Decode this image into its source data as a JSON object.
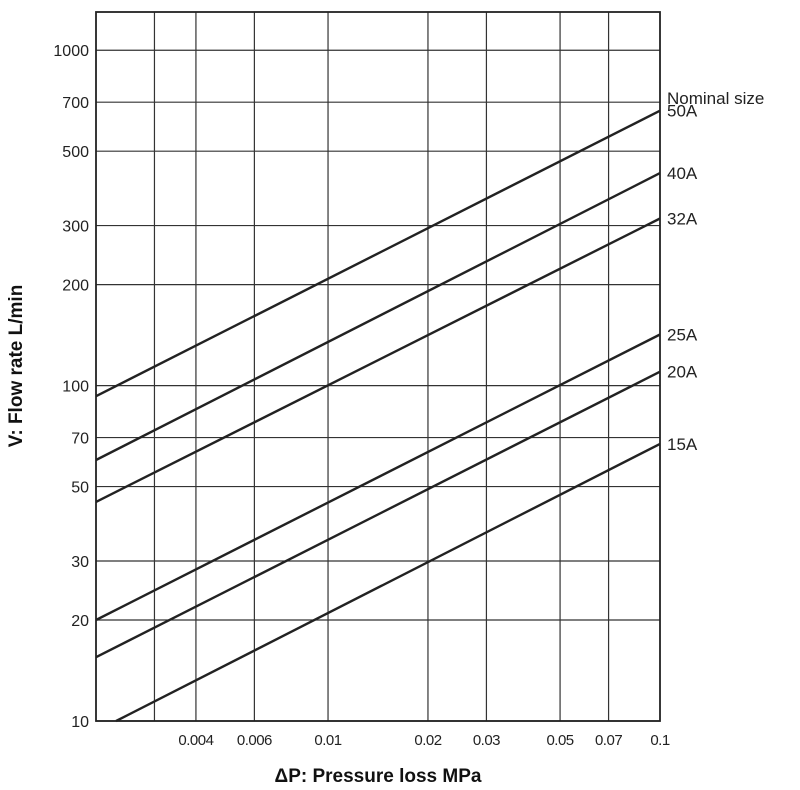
{
  "chart_data": {
    "type": "line",
    "xlabel": "ΔP: Pressure loss MPa",
    "ylabel": "V: Flow rate L/min",
    "xscale": "log",
    "yscale": "log",
    "xlim": [
      0.002,
      0.1
    ],
    "ylim": [
      10,
      1300
    ],
    "grid": true,
    "x_tick_labels": [
      {
        "value": 0.004,
        "label": "0.004"
      },
      {
        "value": 0.006,
        "label": "0.006"
      },
      {
        "value": 0.01,
        "label": "0.01"
      },
      {
        "value": 0.02,
        "label": "0.02"
      },
      {
        "value": 0.03,
        "label": "0.03"
      },
      {
        "value": 0.05,
        "label": "0.05"
      },
      {
        "value": 0.07,
        "label": "0.07"
      },
      {
        "value": 0.1,
        "label": "0.1"
      }
    ],
    "x_grid_values": [
      0.003,
      0.004,
      0.006,
      0.01,
      0.02,
      0.03,
      0.05,
      0.07
    ],
    "y_tick_labels": [
      {
        "value": 1000,
        "label": "1000"
      },
      {
        "value": 700,
        "label": "700"
      },
      {
        "value": 500,
        "label": "500"
      },
      {
        "value": 300,
        "label": "300"
      },
      {
        "value": 200,
        "label": "200"
      },
      {
        "value": 100,
        "label": "100"
      },
      {
        "value": 70,
        "label": "70"
      },
      {
        "value": 50,
        "label": "50"
      },
      {
        "value": 30,
        "label": "30"
      },
      {
        "value": 20,
        "label": "20"
      },
      {
        "value": 10,
        "label": "10"
      }
    ],
    "legend_title": "Nominal size",
    "series": [
      {
        "name": "50A",
        "points": [
          [
            0.002,
            93
          ],
          [
            0.1,
            660
          ]
        ]
      },
      {
        "name": "40A",
        "points": [
          [
            0.002,
            60
          ],
          [
            0.1,
            430
          ]
        ]
      },
      {
        "name": "32A",
        "points": [
          [
            0.002,
            45
          ],
          [
            0.1,
            315
          ]
        ]
      },
      {
        "name": "25A",
        "points": [
          [
            0.002,
            20
          ],
          [
            0.1,
            142
          ]
        ]
      },
      {
        "name": "20A",
        "points": [
          [
            0.002,
            15.5
          ],
          [
            0.1,
            110
          ]
        ]
      },
      {
        "name": "15A",
        "points": [
          [
            0.0023,
            10
          ],
          [
            0.1,
            67
          ]
        ]
      }
    ]
  }
}
